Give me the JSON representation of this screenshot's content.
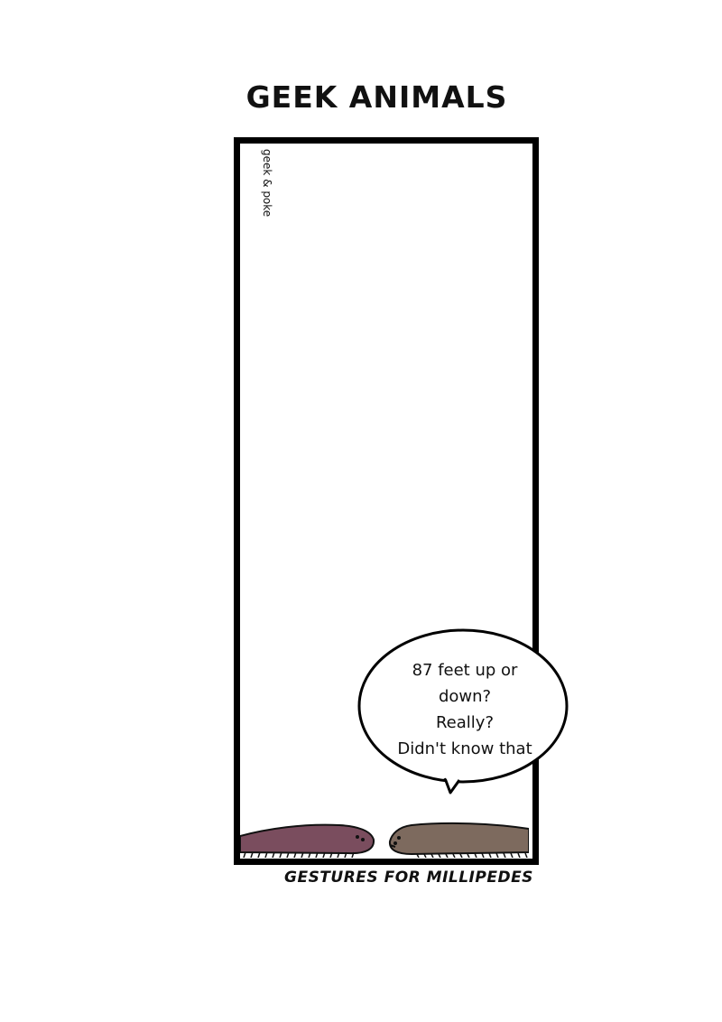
{
  "comic": {
    "title": "GEEK ANIMALS",
    "credit": "geek & poke",
    "speech": [
      "87 feet up or",
      "down?",
      "Really?",
      "Didn't know that"
    ],
    "caption": "GESTURES FOR MILLIPEDES"
  },
  "colors": {
    "millipede_left": "#7a4d5e",
    "millipede_right": "#7d6a5e",
    "border": "#000000"
  }
}
